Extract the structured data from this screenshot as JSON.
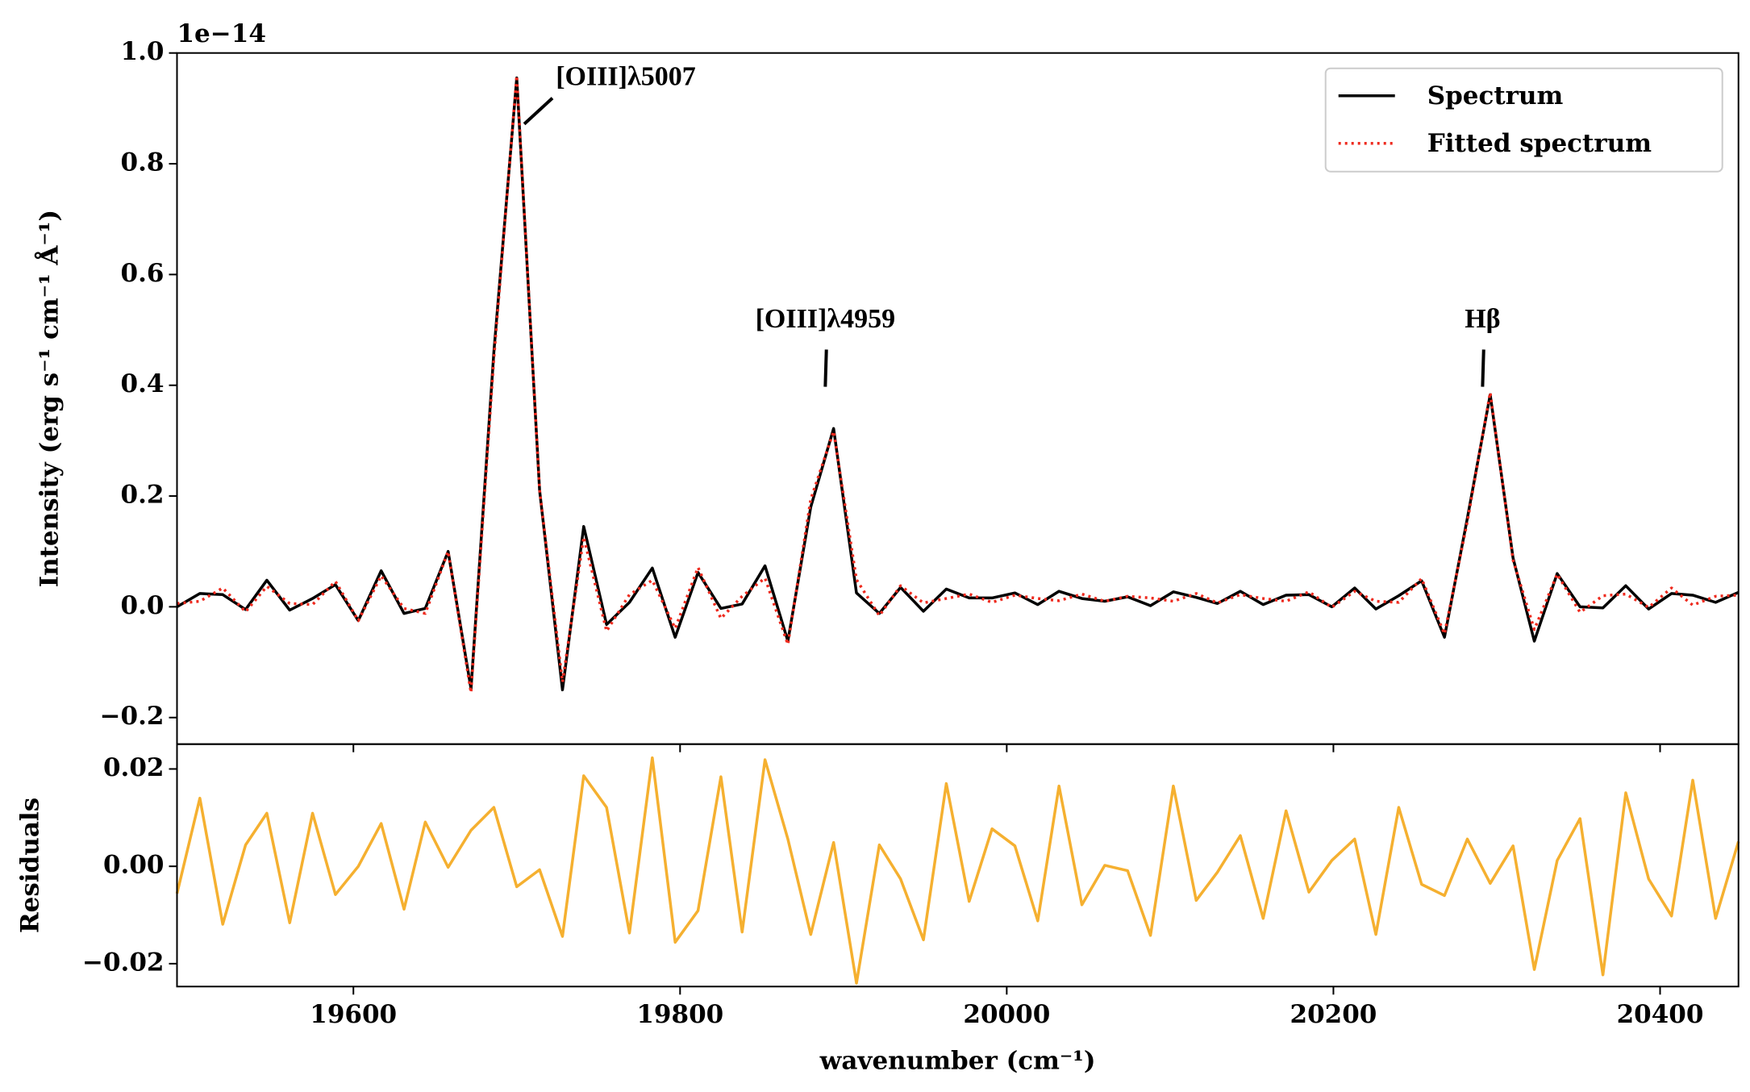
{
  "chart_data": [
    {
      "type": "line",
      "y_offset_label": "1e−14",
      "y_label": "Intensity (erg s⁻¹ cm⁻¹ Å⁻¹)",
      "x": [
        19492,
        19506,
        19520,
        19534,
        19547,
        19561,
        19575,
        19589,
        19603,
        19617,
        19631,
        19644,
        19658,
        19672,
        19686,
        19700,
        19714,
        19728,
        19741,
        19755,
        19769,
        19783,
        19797,
        19811,
        19825,
        19838,
        19852,
        19866,
        19880,
        19894,
        19908,
        19922,
        19935,
        19949,
        19963,
        19977,
        19991,
        20005,
        20019,
        20032,
        20046,
        20060,
        20074,
        20088,
        20102,
        20116,
        20129,
        20143,
        20157,
        20171,
        20185,
        20199,
        20213,
        20226,
        20240,
        20254,
        20268,
        20282,
        20296,
        20310,
        20323,
        20337,
        20351,
        20365,
        20379,
        20393,
        20407,
        20420,
        20434,
        20448
      ],
      "series": [
        {
          "name": "Spectrum",
          "color": "#000000",
          "style": "solid",
          "values": [
            0.0,
            0.024,
            0.022,
            -0.005,
            0.048,
            -0.006,
            0.015,
            0.04,
            -0.025,
            0.065,
            -0.012,
            -0.003,
            0.1,
            -0.148,
            0.46,
            0.955,
            0.21,
            -0.15,
            0.145,
            -0.032,
            0.008,
            0.07,
            -0.055,
            0.062,
            -0.003,
            0.005,
            0.074,
            -0.062,
            0.18,
            0.322,
            0.025,
            -0.012,
            0.035,
            -0.008,
            0.032,
            0.016,
            0.016,
            0.025,
            0.004,
            0.028,
            0.015,
            0.01,
            0.018,
            0.002,
            0.027,
            0.017,
            0.006,
            0.028,
            0.004,
            0.021,
            0.022,
            0.0,
            0.034,
            -0.004,
            0.02,
            0.047,
            -0.055,
            0.16,
            0.383,
            0.088,
            -0.062,
            0.06,
            0.0,
            -0.002,
            0.038,
            -0.004,
            0.024,
            0.021,
            0.008,
            0.026
          ]
        },
        {
          "name": "Fitted spectrum",
          "color": "#ee2a1e",
          "style": "dotted",
          "values": [
            0.006,
            0.01,
            0.034,
            -0.009,
            0.037,
            0.006,
            0.004,
            0.046,
            -0.025,
            0.056,
            -0.003,
            -0.012,
            0.1,
            -0.155,
            0.448,
            0.959,
            0.211,
            -0.136,
            0.126,
            -0.044,
            0.022,
            0.048,
            -0.039,
            0.071,
            -0.021,
            0.019,
            0.052,
            -0.068,
            0.194,
            0.317,
            0.049,
            -0.016,
            0.038,
            0.007,
            0.015,
            0.023,
            0.008,
            0.021,
            0.015,
            0.011,
            0.023,
            0.01,
            0.019,
            0.016,
            0.01,
            0.024,
            0.007,
            0.022,
            0.015,
            0.01,
            0.027,
            -0.001,
            0.028,
            0.01,
            0.008,
            0.051,
            -0.049,
            0.154,
            0.387,
            0.084,
            -0.041,
            0.059,
            -0.01,
            0.02,
            0.023,
            -0.001,
            0.034,
            0.003,
            0.019,
            0.021
          ]
        }
      ],
      "xlim": [
        19492,
        20448
      ],
      "ylim": [
        -0.248,
        1.0
      ],
      "yticks": [
        {
          "value": -0.2,
          "label": "−0.2"
        },
        {
          "value": 0,
          "label": "0.0"
        },
        {
          "value": 0.2,
          "label": "0.2"
        },
        {
          "value": 0.4,
          "label": "0.4"
        },
        {
          "value": 0.6,
          "label": "0.6"
        },
        {
          "value": 0.8,
          "label": "0.8"
        },
        {
          "value": 1.0,
          "label": "1.0"
        }
      ],
      "legend": "upper right",
      "annotations": [
        "[OIII]λ5007",
        "[OIII]λ4959",
        "Hβ"
      ]
    },
    {
      "type": "line",
      "x_label": "wavenumber (cm⁻¹)",
      "y_label": "Residuals",
      "series": [
        {
          "name": "Residuals",
          "color": "#f5b030",
          "values": [
            -0.0056,
            0.014,
            -0.0119,
            0.0044,
            0.0109,
            -0.0116,
            0.0109,
            -0.0058,
            0.0,
            0.0088,
            -0.0088,
            0.0091,
            -0.0002,
            0.0074,
            0.0121,
            -0.0042,
            -0.0007,
            -0.0144,
            0.0186,
            0.0121,
            -0.0137,
            0.0223,
            -0.0156,
            -0.0091,
            0.0184,
            -0.0135,
            0.0219,
            0.0056,
            -0.014,
            0.0049,
            -0.024,
            0.0044,
            -0.0026,
            -0.0151,
            0.017,
            -0.0072,
            0.0077,
            0.0042,
            -0.0112,
            0.0165,
            -0.0079,
            0.0002,
            -0.0009,
            -0.0142,
            0.0165,
            -0.007,
            -0.0012,
            0.0063,
            -0.0107,
            0.0114,
            -0.0053,
            0.0012,
            0.0056,
            -0.014,
            0.0121,
            -0.0037,
            -0.006,
            0.0056,
            -0.0035,
            0.0042,
            -0.0212,
            0.0012,
            0.0098,
            -0.0223,
            0.0151,
            -0.0026,
            -0.0102,
            0.0177,
            -0.0107,
            0.0051
          ]
        }
      ],
      "xlim": [
        19492,
        20448
      ],
      "xticks": [
        19600,
        19800,
        20000,
        20200,
        20400
      ],
      "ylim": [
        -0.0247,
        0.0251
      ],
      "yticks": [
        {
          "value": -0.02,
          "label": "−0.02"
        },
        {
          "value": 0,
          "label": "0.00"
        },
        {
          "value": 0.02,
          "label": "0.02"
        }
      ]
    }
  ]
}
